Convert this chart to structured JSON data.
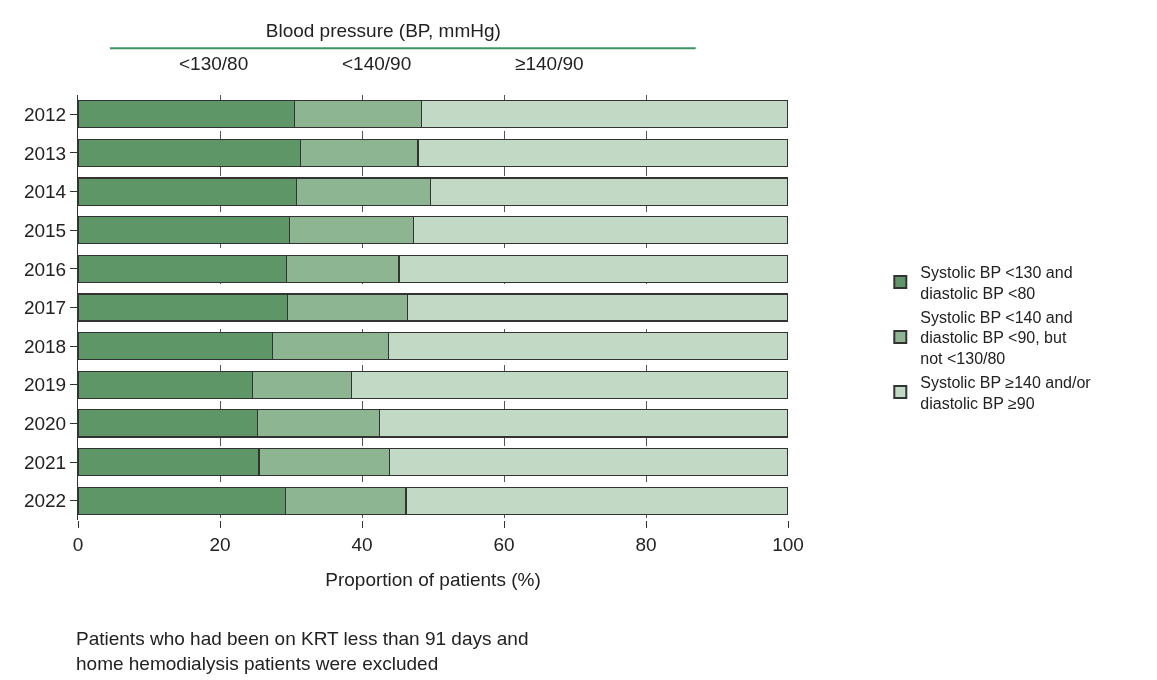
{
  "chart_data": {
    "type": "bar",
    "orientation": "horizontal",
    "stacked": true,
    "title": "Blood pressure (BP, mmHg)",
    "xlabel": "Proportion of patients (%)",
    "categories": [
      "2012",
      "2013",
      "2014",
      "2015",
      "2016",
      "2017",
      "2018",
      "2019",
      "2020",
      "2021",
      "2022"
    ],
    "series": [
      {
        "name": "Systolic BP <130 and diastolic BP <80",
        "color": "#5e9668",
        "values": [
          30.5,
          31.3,
          30.8,
          29.8,
          29.4,
          29.5,
          27.4,
          24.6,
          25.3,
          25.5,
          29.2
        ]
      },
      {
        "name": "Systolic BP <140 and diastolic BP <90, but not <130/80",
        "color": "#8db592",
        "values": [
          17.9,
          16.6,
          18.9,
          17.4,
          15.8,
          16.9,
          16.3,
          13.9,
          17.2,
          18.4,
          17.0
        ]
      },
      {
        "name": "Systolic BP ≥140 and/or diastolic BP ≥90",
        "color": "#c2d9c6",
        "values": [
          51.6,
          52.1,
          50.3,
          52.8,
          54.8,
          53.6,
          56.3,
          61.5,
          57.5,
          56.1,
          53.8
        ]
      }
    ],
    "xlim": [
      0,
      100
    ],
    "xticks": [
      0,
      20,
      40,
      60,
      80,
      100
    ],
    "grid": "x",
    "legend": "right",
    "annotations": [
      "<130/80",
      "<140/90",
      "≥140/90",
      "Patients who had been on KRT less than 91 days and home hemodialysis patients were excluded"
    ]
  }
}
